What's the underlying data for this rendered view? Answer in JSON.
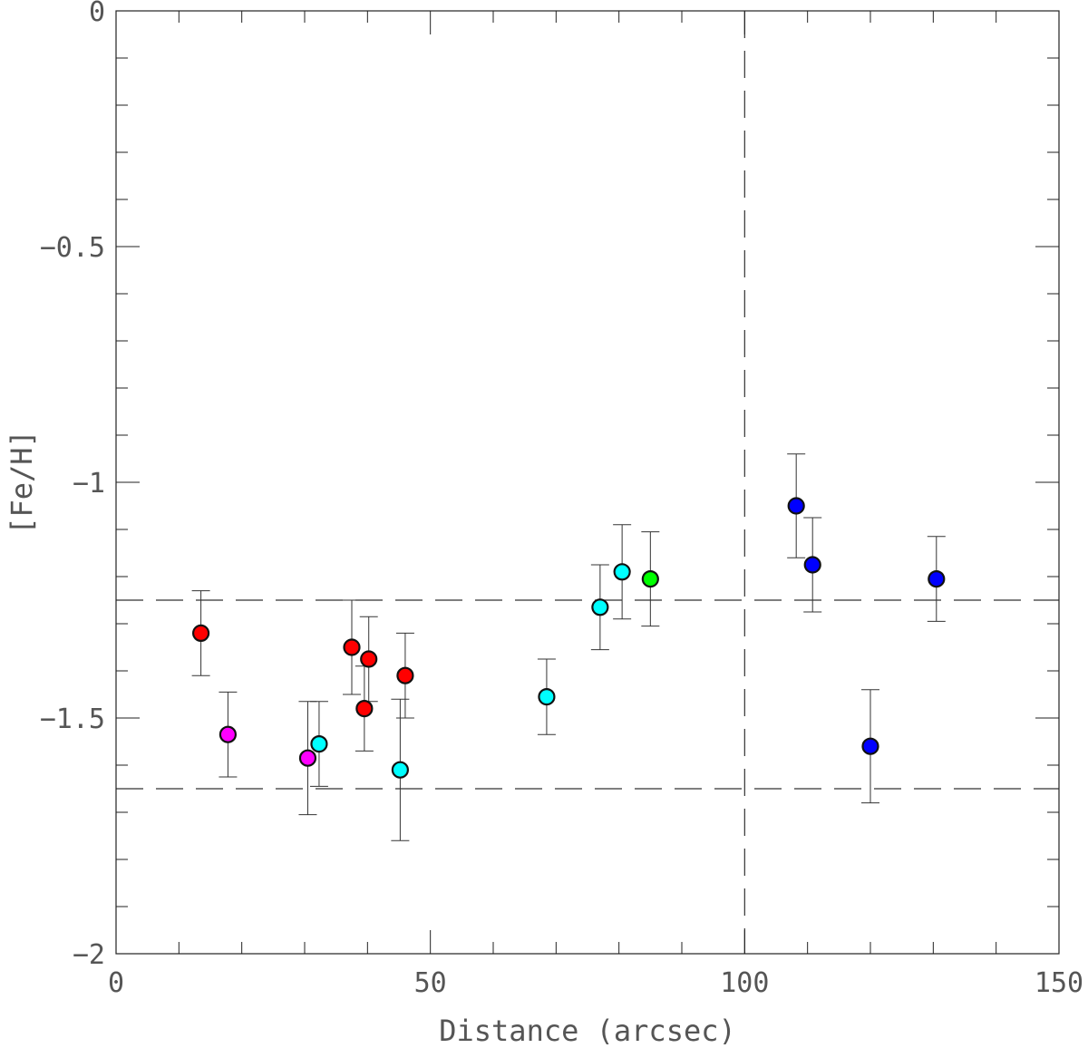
{
  "chart_data": {
    "type": "scatter",
    "title": "",
    "xlabel": "Distance (arcsec)",
    "ylabel": "[Fe/H]",
    "xlim": [
      0,
      150
    ],
    "ylim": [
      -2,
      0
    ],
    "x_major_ticks": [
      0,
      50,
      100,
      150
    ],
    "x_minor_step": 10,
    "y_major_ticks": [
      0,
      -0.5,
      -1,
      -1.5,
      -2
    ],
    "y_minor_step": 0.1,
    "x_tick_labels": [
      "0",
      "50",
      "100",
      "150"
    ],
    "y_tick_labels": [
      "0",
      "−0.5",
      "−1",
      "−1.5",
      "−2"
    ],
    "reference_lines": [
      {
        "orientation": "horizontal",
        "value": -1.25,
        "style": "dashed"
      },
      {
        "orientation": "horizontal",
        "value": -1.65,
        "style": "dashed"
      },
      {
        "orientation": "vertical",
        "value": 100,
        "style": "dashed"
      }
    ],
    "series": [
      {
        "name": "red",
        "color": "#ff0000",
        "points": [
          {
            "x": 13.5,
            "y": -1.32,
            "err": 0.09
          },
          {
            "x": 37.5,
            "y": -1.35,
            "err": 0.1
          },
          {
            "x": 40.2,
            "y": -1.375,
            "err": 0.09
          },
          {
            "x": 39.5,
            "y": -1.48,
            "err": 0.09
          },
          {
            "x": 46.0,
            "y": -1.41,
            "err": 0.09
          }
        ]
      },
      {
        "name": "magenta",
        "color": "#ff00ff",
        "points": [
          {
            "x": 17.8,
            "y": -1.535,
            "err": 0.09
          },
          {
            "x": 30.5,
            "y": -1.585,
            "err": 0.12
          }
        ]
      },
      {
        "name": "cyan",
        "color": "#00ffff",
        "points": [
          {
            "x": 32.3,
            "y": -1.555,
            "err": 0.09
          },
          {
            "x": 45.2,
            "y": -1.61,
            "err": 0.15
          },
          {
            "x": 68.5,
            "y": -1.455,
            "err": 0.08
          },
          {
            "x": 77.0,
            "y": -1.265,
            "err": 0.09
          },
          {
            "x": 80.5,
            "y": -1.19,
            "err": 0.1
          }
        ]
      },
      {
        "name": "green",
        "color": "#00ff00",
        "points": [
          {
            "x": 85.0,
            "y": -1.205,
            "err": 0.1
          }
        ]
      },
      {
        "name": "blue",
        "color": "#0000ff",
        "points": [
          {
            "x": 108.2,
            "y": -1.05,
            "err": 0.11
          },
          {
            "x": 110.8,
            "y": -1.175,
            "err": 0.1
          },
          {
            "x": 120.0,
            "y": -1.56,
            "err": 0.12
          },
          {
            "x": 130.5,
            "y": -1.205,
            "err": 0.09
          }
        ]
      }
    ]
  }
}
